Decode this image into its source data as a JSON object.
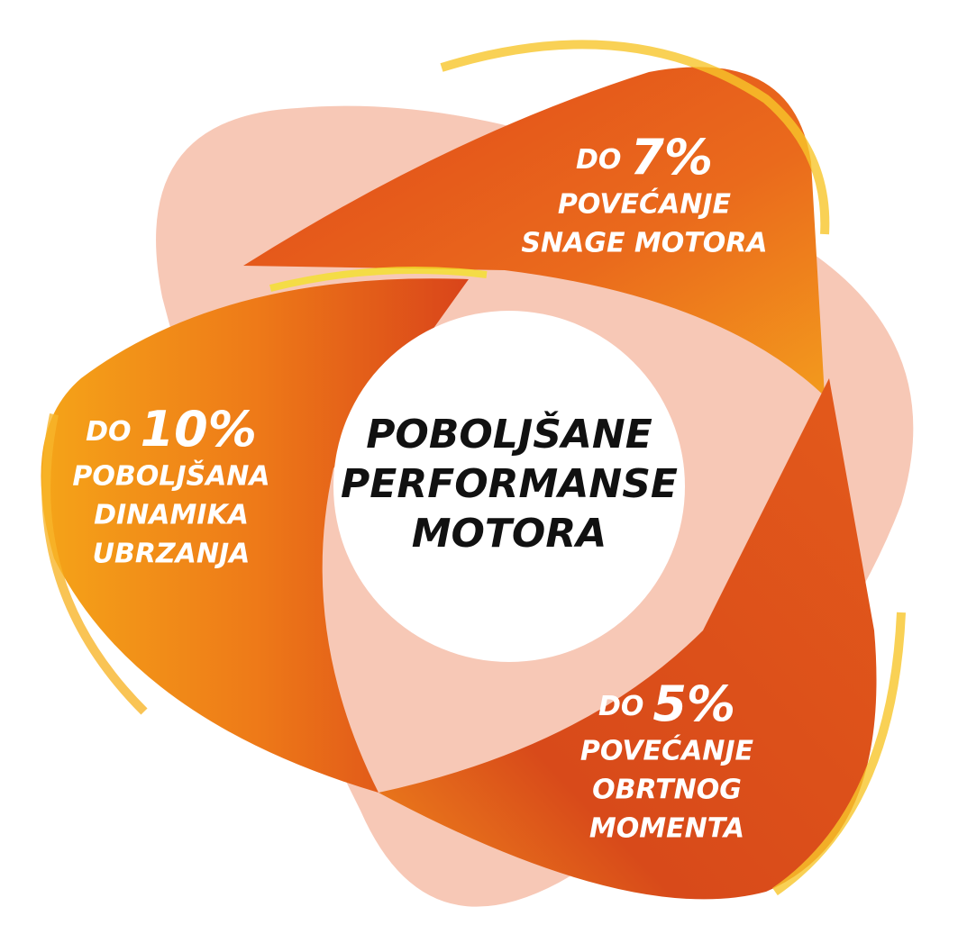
{
  "center": {
    "lines": [
      "POBOLJŠANE",
      "PERFORMANSE",
      "MOTORA"
    ]
  },
  "callouts": [
    {
      "prefix": "DO",
      "highlight": "7%",
      "lines": [
        "POVEĆANJE",
        "SNAGE MOTORA"
      ]
    },
    {
      "prefix": "DO",
      "highlight": "10%",
      "lines": [
        "POBOLJŠANA",
        "DINAMIKA",
        "UBRZANJA"
      ]
    },
    {
      "prefix": "DO",
      "highlight": "5%",
      "lines": [
        "POVEĆANJE",
        "OBRTNOG",
        "MOMENTA"
      ]
    }
  ]
}
